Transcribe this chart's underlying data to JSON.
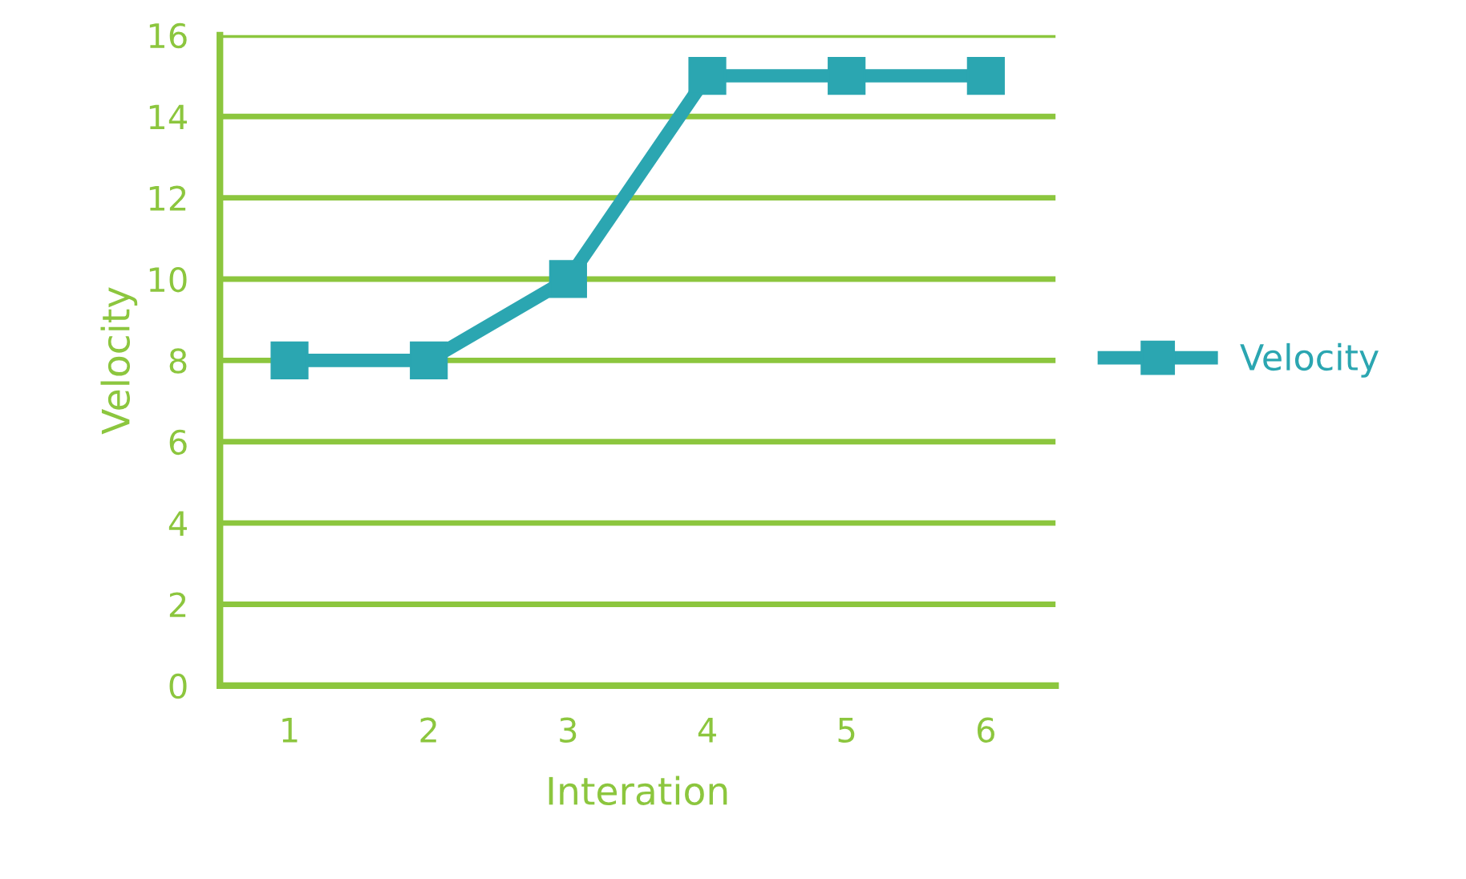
{
  "chart_data": {
    "type": "line",
    "xlabel": "Interation",
    "ylabel": "Velocity",
    "categories": [
      "1",
      "2",
      "3",
      "4",
      "5",
      "6"
    ],
    "series": [
      {
        "name": "Velocity",
        "color": "#2ba6b1",
        "values": [
          8,
          8,
          10,
          15,
          15,
          15
        ]
      }
    ],
    "ylim": [
      0,
      16
    ],
    "yticks": [
      0,
      2,
      4,
      6,
      8,
      10,
      12,
      14,
      16
    ],
    "grid": "y",
    "legend": "right",
    "marker": "square",
    "line_style": "solid"
  }
}
